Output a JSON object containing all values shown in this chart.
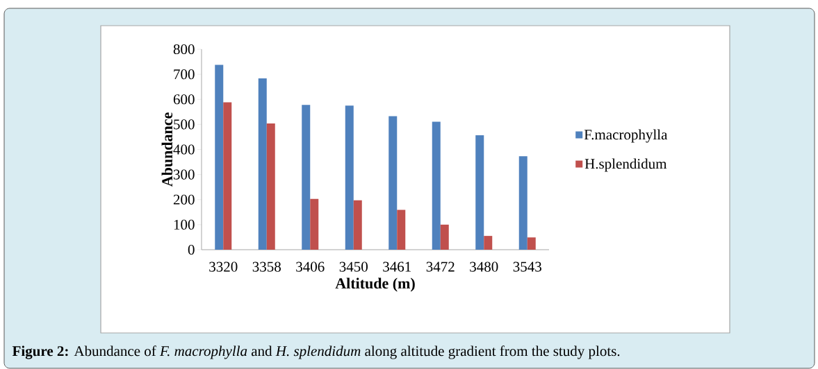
{
  "chart_data": {
    "type": "bar",
    "xlabel": "Altitude (m)",
    "ylabel": "Abundance",
    "categories": [
      "3320",
      "3358",
      "3406",
      "3450",
      "3461",
      "3472",
      "3480",
      "3543"
    ],
    "series": [
      {
        "name": "F.macrophylla",
        "color": "#4f81bd",
        "values": [
          738,
          684,
          578,
          575,
          533,
          511,
          457,
          373
        ]
      },
      {
        "name": "H.splendidum",
        "color": "#c0504d",
        "values": [
          588,
          504,
          203,
          197,
          159,
          100,
          55,
          49
        ]
      }
    ],
    "ylim": [
      0,
      800
    ],
    "yticks": [
      0,
      100,
      200,
      300,
      400,
      500,
      600,
      700,
      800
    ],
    "grid": false,
    "legend": "right",
    "annotations": [
      "**Figure 2:** Abundance of *F. macrophylla* and *H. splendidum* along altitude gradient from the study plots."
    ]
  }
}
